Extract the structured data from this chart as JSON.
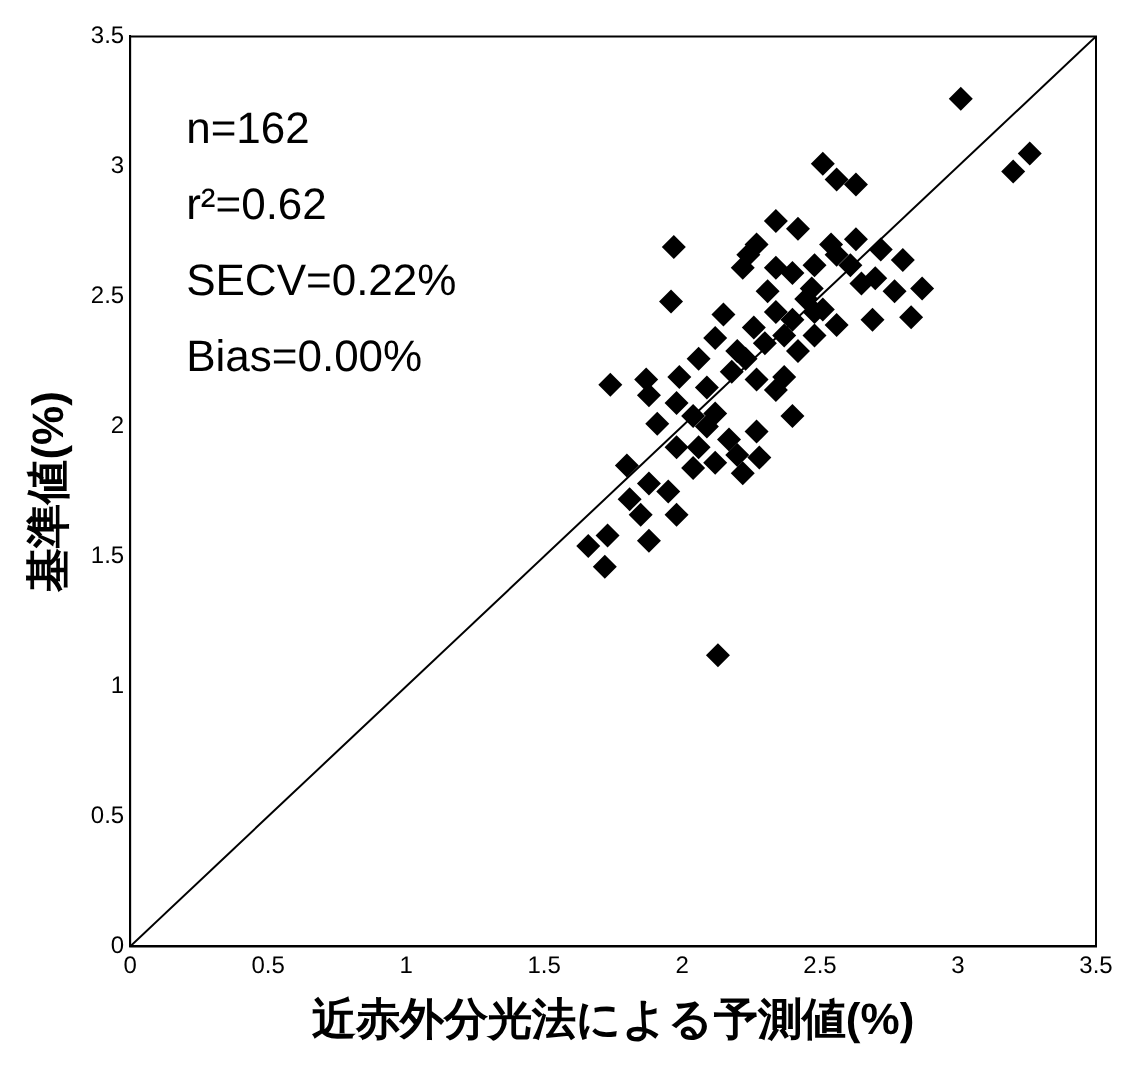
{
  "chart_data": {
    "type": "scatter",
    "xlabel": "近赤外分光法による予測値(%)",
    "ylabel": "基準値(%)",
    "xlim": [
      0,
      3.5
    ],
    "ylim": [
      0,
      3.5
    ],
    "xticks": [
      0,
      0.5,
      1,
      1.5,
      2,
      2.5,
      3,
      3.5
    ],
    "yticks": [
      0,
      0.5,
      1,
      1.5,
      2,
      2.5,
      3,
      3.5
    ],
    "grid": false,
    "legend": false,
    "marker": "diamond",
    "annotations": [
      "n=162",
      "r²=0.62",
      "SECV=0.22%",
      "Bias=0.00%"
    ],
    "series": [
      {
        "type": "line",
        "color": "#000000",
        "marker": "none",
        "line_style": "solid",
        "x": [
          0,
          3.5
        ],
        "values": [
          0,
          3.5
        ]
      },
      {
        "color": "#000000",
        "x": [
          3.01,
          3.26,
          3.2,
          2.51,
          2.56,
          2.63,
          1.97,
          1.96,
          2.34,
          2.42,
          2.27,
          2.24,
          2.22,
          2.54,
          2.63,
          2.72,
          2.8,
          2.87,
          2.83,
          2.77,
          2.69,
          2.56,
          2.65,
          2.48,
          2.4,
          2.31,
          2.45,
          2.34,
          2.26,
          2.48,
          2.15,
          2.2,
          2.12,
          2.06,
          2.27,
          2.37,
          2.34,
          2.4,
          1.74,
          1.87,
          1.88,
          1.91,
          1.99,
          1.98,
          2.09,
          2.18,
          2.04,
          2.12,
          2.17,
          2.27,
          2.2,
          2.28,
          2.22,
          2.12,
          2.04,
          1.98,
          1.8,
          1.88,
          1.81,
          1.95,
          1.98,
          1.85,
          1.88,
          1.73,
          1.66,
          1.72,
          2.13,
          2.06,
          2.09,
          2.47,
          2.51,
          2.56,
          2.42,
          2.3,
          2.23,
          2.48,
          2.37,
          2.7,
          2.61,
          2.34,
          2.4
        ],
        "values": [
          3.26,
          3.05,
          2.98,
          3.01,
          2.95,
          2.93,
          2.69,
          2.48,
          2.79,
          2.76,
          2.7,
          2.66,
          2.61,
          2.7,
          2.72,
          2.68,
          2.64,
          2.53,
          2.42,
          2.52,
          2.41,
          2.39,
          2.55,
          2.62,
          2.59,
          2.52,
          2.49,
          2.44,
          2.38,
          2.35,
          2.43,
          2.29,
          2.34,
          2.26,
          2.18,
          2.19,
          2.14,
          2.04,
          2.16,
          2.18,
          2.12,
          2.01,
          2.19,
          2.09,
          2.15,
          2.21,
          2.04,
          2.05,
          1.95,
          1.98,
          1.89,
          1.88,
          1.82,
          1.86,
          1.84,
          1.92,
          1.85,
          1.78,
          1.72,
          1.75,
          1.66,
          1.66,
          1.56,
          1.58,
          1.54,
          1.46,
          1.12,
          1.92,
          2.0,
          2.53,
          2.45,
          2.66,
          2.29,
          2.32,
          2.26,
          2.44,
          2.35,
          2.57,
          2.62,
          2.61,
          2.41
        ]
      }
    ]
  }
}
